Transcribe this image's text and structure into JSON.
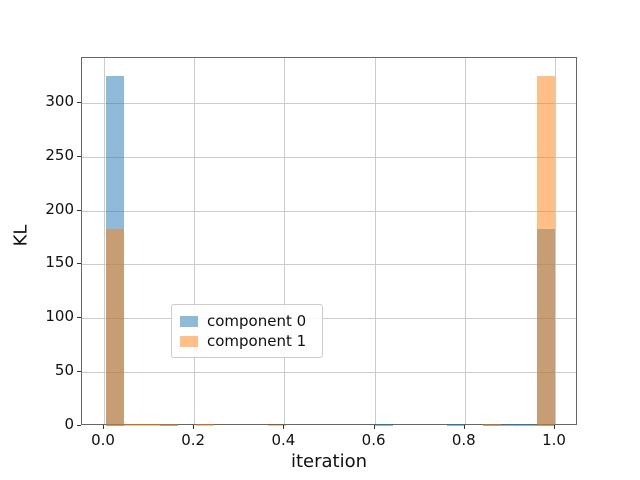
{
  "figure": {
    "background": "#ffffff"
  },
  "chart_data": {
    "type": "bar",
    "subtype": "overlapping-histogram",
    "title": "",
    "xlabel": "iteration",
    "ylabel": "KL",
    "xlim": [
      -0.0488,
      1.051
    ],
    "ylim": [
      0,
      341.5
    ],
    "grid": true,
    "grid_color": "#cccccc",
    "x_ticks": [
      {
        "value": 0.0,
        "label": "0.0"
      },
      {
        "value": 0.2,
        "label": "0.2"
      },
      {
        "value": 0.4,
        "label": "0.4"
      },
      {
        "value": 0.6,
        "label": "0.6"
      },
      {
        "value": 0.8,
        "label": "0.8"
      },
      {
        "value": 1.0,
        "label": "1.0"
      }
    ],
    "y_ticks": [
      {
        "value": 0,
        "label": "0"
      },
      {
        "value": 50,
        "label": "50"
      },
      {
        "value": 100,
        "label": "100"
      },
      {
        "value": 150,
        "label": "150"
      },
      {
        "value": 200,
        "label": "200"
      },
      {
        "value": 250,
        "label": "250"
      },
      {
        "value": 300,
        "label": "300"
      }
    ],
    "bin_start": 0.0042,
    "bin_width": 0.03983,
    "bar_alpha": 0.5,
    "series": [
      {
        "name": "component 0",
        "color": "#1f77b4",
        "values": [
          325,
          0,
          0,
          2,
          0,
          0,
          0,
          0,
          0,
          0,
          0,
          0,
          0,
          0,
          0,
          1.5,
          0,
          0,
          0,
          1.5,
          0,
          1.5,
          1.5,
          1.5,
          183
        ]
      },
      {
        "name": "component 1",
        "color": "#ff7f0e",
        "values": [
          183,
          2,
          2,
          2,
          0,
          1.5,
          0,
          0,
          0,
          1,
          0,
          0,
          0,
          0,
          0,
          0,
          0,
          0,
          0,
          0,
          0,
          1.5,
          0,
          0,
          325
        ]
      }
    ],
    "legend": {
      "position": "lower center",
      "entries": [
        "component 0",
        "component 1"
      ]
    }
  }
}
